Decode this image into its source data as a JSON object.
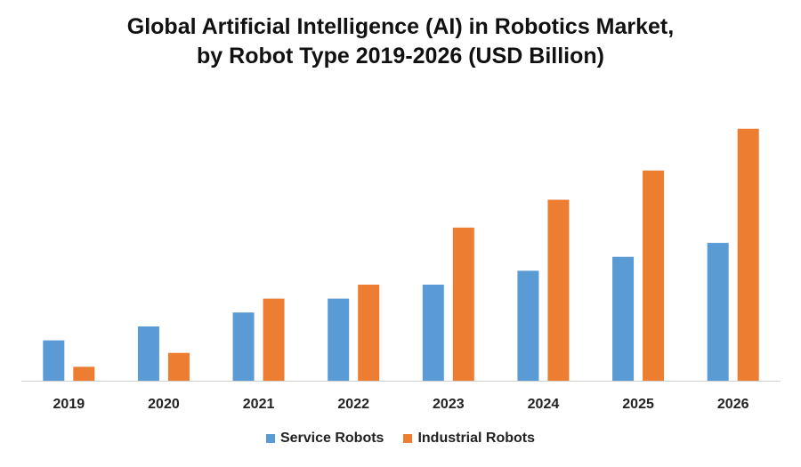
{
  "chart_data": {
    "type": "bar",
    "title_lines": [
      "Global Artificial Intelligence (AI) in Robotics Market,",
      "by Robot Type 2019-2026 (USD Billion)"
    ],
    "categories": [
      "2019",
      "2020",
      "2021",
      "2022",
      "2023",
      "2024",
      "2025",
      "2026"
    ],
    "series": [
      {
        "name": "Service Robots",
        "color": "#5b9bd5",
        "values": [
          2.9,
          3.9,
          4.9,
          5.9,
          6.9,
          7.9,
          8.9,
          9.9
        ]
      },
      {
        "name": "Industrial Robots",
        "color": "#ed7d31",
        "values": [
          1.0,
          2.0,
          5.9,
          6.9,
          11.0,
          13.0,
          15.1,
          18.1
        ]
      }
    ],
    "ylim": [
      0,
      20
    ],
    "grid": false,
    "legend_position": "bottom"
  }
}
